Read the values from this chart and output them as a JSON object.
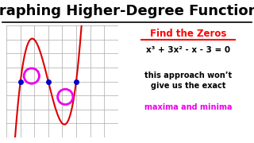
{
  "title": "Graphing Higher-Degree Functions",
  "title_fontsize": 13,
  "background_color": "#ffffff",
  "graph_bg": "#ffffff",
  "grid_color": "#aaaaaa",
  "axis_color": "#000000",
  "curve_color": "#dd0000",
  "arrow_color": "#0000ee",
  "zero_dot_color": "#0000cc",
  "circle_color": "#ee00ee",
  "find_zeros_text": "Find the Zeros",
  "equation_text": "x³ + 3x² - x - 3 = 0",
  "note_line1": "this approach won’t",
  "note_line2": "give us the exact",
  "note_line3": "maxima and minima",
  "note_color": "#000000",
  "maxmin_color": "#ee00ee",
  "xlim": [
    -4,
    4
  ],
  "ylim": [
    -4,
    4
  ],
  "zeros": [
    -3,
    -1,
    1
  ],
  "local_max": [
    -2.2,
    0.4
  ],
  "local_min": [
    0.22,
    -1.1
  ],
  "cell_size": 1
}
